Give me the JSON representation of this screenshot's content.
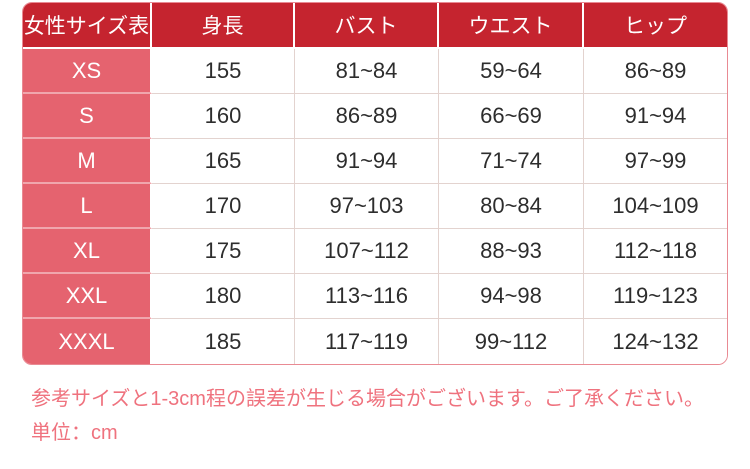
{
  "chart_data": {
    "type": "table",
    "title": "女性サイズ表",
    "columns": [
      "女性サイズ表",
      "身長",
      "バスト",
      "ウエスト",
      "ヒップ"
    ],
    "rows": [
      [
        "XS",
        "155",
        "81~84",
        "59~64",
        "86~89"
      ],
      [
        "S",
        "160",
        "86~89",
        "66~69",
        "91~94"
      ],
      [
        "M",
        "165",
        "91~94",
        "71~74",
        "97~99"
      ],
      [
        "L",
        "170",
        "97~103",
        "80~84",
        "104~109"
      ],
      [
        "XL",
        "175",
        "107~112",
        "88~93",
        "112~118"
      ],
      [
        "XXL",
        "180",
        "113~116",
        "94~98",
        "119~123"
      ],
      [
        "XXXL",
        "185",
        "117~119",
        "99~112",
        "124~132"
      ]
    ],
    "unit": "cm",
    "notes": [
      "参考サイズと1-3cm程の誤差が生じる場合がございます。ご了承ください。",
      "単位：cm"
    ]
  },
  "notes": {
    "line1": "参考サイズと1-3cm程の誤差が生じる場合がございます。ご了承ください。",
    "line2": "単位：cm"
  },
  "colors": {
    "header_bg": "#C5242F",
    "size_column_bg": "#E5636F",
    "size_row_divider": "#F0A6AD",
    "grid_line": "#E3D3CF",
    "outer_border": "#E98A93",
    "note_text": "#EF727E",
    "cell_text": "#2D2D2D"
  }
}
